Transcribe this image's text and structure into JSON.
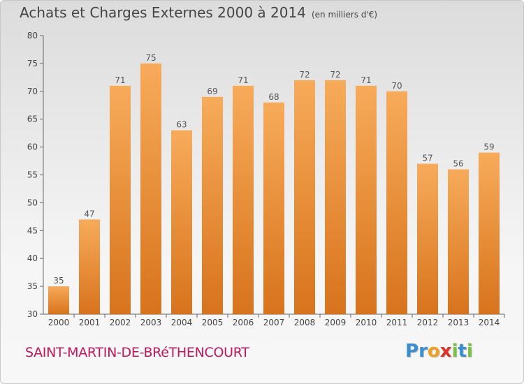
{
  "title": "Achats et Charges Externes 2000 à 2014",
  "subtitle": "(en milliers d'€)",
  "location": "SAINT-MARTIN-DE-BRéTHENCOURT",
  "logo": {
    "letters": [
      "P",
      "r",
      "o",
      "x",
      "i",
      "t",
      "i"
    ],
    "colors": [
      "#3a8fd0",
      "#3a8fd0",
      "#f0a020",
      "#e0302a",
      "#7cc242",
      "#3a8fd0",
      "#7cc242"
    ]
  },
  "colors": {
    "bar_top": "#f7ab5a",
    "bar_bottom": "#d8731c"
  },
  "chart_data": {
    "type": "bar",
    "categories": [
      "2000",
      "2001",
      "2002",
      "2003",
      "2004",
      "2005",
      "2006",
      "2007",
      "2008",
      "2009",
      "2010",
      "2011",
      "2012",
      "2013",
      "2014"
    ],
    "values": [
      35,
      47,
      71,
      75,
      63,
      69,
      71,
      68,
      72,
      72,
      71,
      70,
      57,
      56,
      59
    ],
    "ylim": [
      30,
      80
    ],
    "yticks": [
      30,
      35,
      40,
      45,
      50,
      55,
      60,
      65,
      70,
      75,
      80
    ],
    "grid": false
  }
}
